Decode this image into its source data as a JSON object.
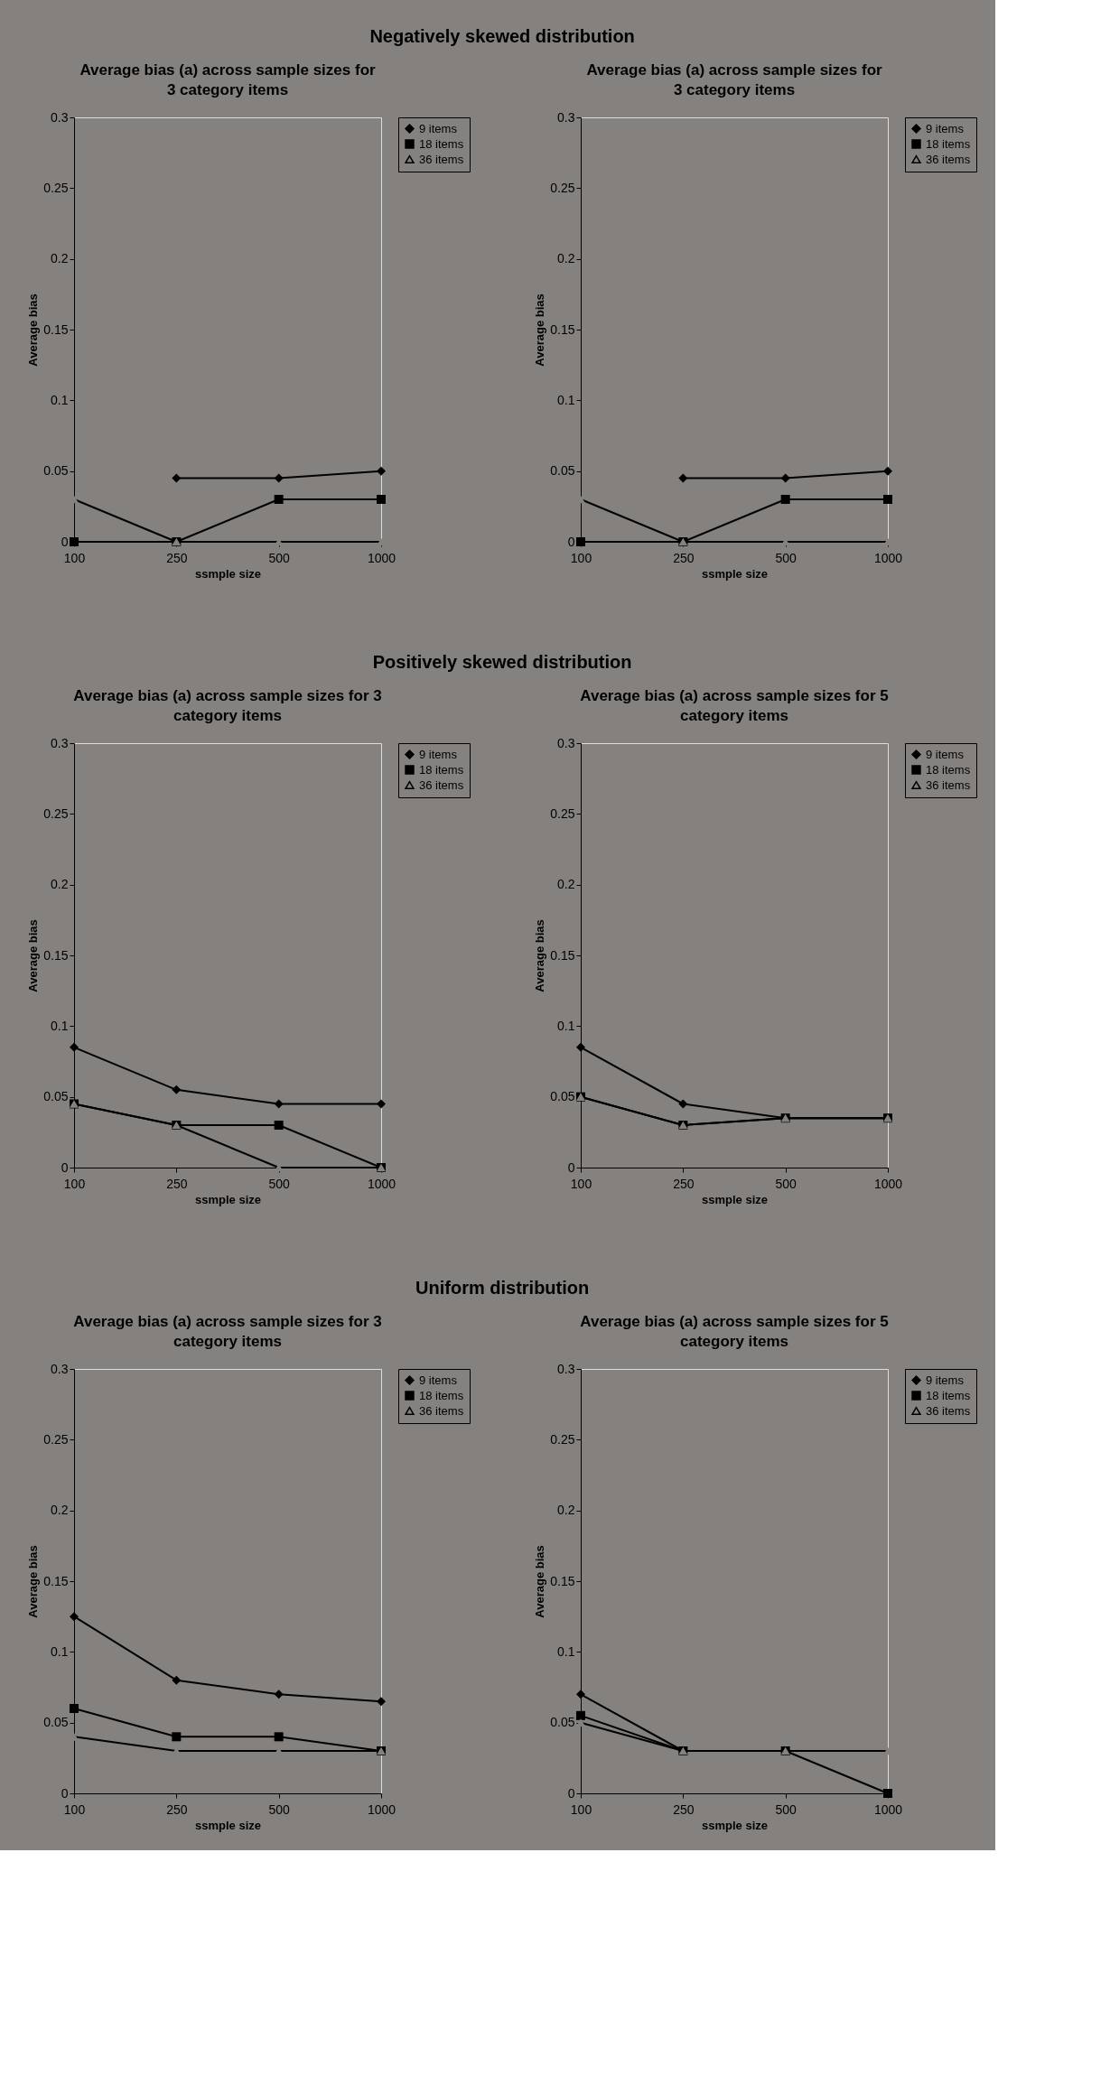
{
  "chart_data": [
    {
      "type": "line",
      "title": "Average bias (a) across sample sizes for\n3 category items",
      "xlabel": "ssmple size",
      "ylabel": "Average bias",
      "categories": [
        "100",
        "250",
        "500",
        "1000"
      ],
      "ylim": [
        0,
        0.3
      ],
      "yticks": [
        0,
        0.05,
        0.1,
        0.15,
        0.2,
        0.25,
        0.3
      ],
      "legend": "top right",
      "annotations": [
        "Negatively skewed distribution"
      ],
      "series": [
        {
          "name": "9 items",
          "color": "#000000",
          "marker": "diamond",
          "values": [
            null,
            0.045,
            0.045,
            0.05
          ]
        },
        {
          "name": "18 items",
          "color": "#000000",
          "marker": "square",
          "values": [
            0,
            0,
            0.03,
            0.03
          ]
        },
        {
          "name": "36 items",
          "color": "#000000",
          "marker": "triangle",
          "values": [
            0.03,
            0,
            0,
            0
          ]
        }
      ]
    },
    {
      "type": "line",
      "title": "Average bias (a) across sample sizes for\n3 category items",
      "xlabel": "ssmple size",
      "ylabel": "Average bias",
      "categories": [
        "100",
        "250",
        "500",
        "1000"
      ],
      "ylim": [
        0,
        0.3
      ],
      "yticks": [
        0,
        0.05,
        0.1,
        0.15,
        0.2,
        0.25,
        0.3
      ],
      "legend": "top right",
      "series": [
        {
          "name": "9 items",
          "color": "#000000",
          "marker": "diamond",
          "values": [
            null,
            0.045,
            0.045,
            0.05
          ]
        },
        {
          "name": "18 items",
          "color": "#000000",
          "marker": "square",
          "values": [
            0,
            0,
            0.03,
            0.03
          ]
        },
        {
          "name": "36 items",
          "color": "#000000",
          "marker": "triangle",
          "values": [
            0.03,
            0,
            0,
            0
          ]
        }
      ]
    },
    {
      "type": "line",
      "title": "Average bias (a) across sample sizes for 3\ncategory items",
      "xlabel": "ssmple size",
      "ylabel": "Average bias",
      "categories": [
        "100",
        "250",
        "500",
        "1000"
      ],
      "ylim": [
        0,
        0.3
      ],
      "yticks": [
        0,
        0.05,
        0.1,
        0.15,
        0.2,
        0.25,
        0.3
      ],
      "legend": "top right",
      "annotations": [
        "Positively skewed distribution"
      ],
      "series": [
        {
          "name": "9 items",
          "color": "#000000",
          "marker": "diamond",
          "values": [
            0.085,
            0.055,
            0.045,
            0.045
          ]
        },
        {
          "name": "18 items",
          "color": "#000000",
          "marker": "square",
          "values": [
            0.045,
            0.03,
            0.03,
            0
          ]
        },
        {
          "name": "36 items",
          "color": "#000000",
          "marker": "triangle",
          "values": [
            0.045,
            0.03,
            0,
            0
          ]
        }
      ]
    },
    {
      "type": "line",
      "title": "Average bias (a) across sample sizes for 5\ncategory items",
      "xlabel": "ssmple size",
      "ylabel": "Average bias",
      "categories": [
        "100",
        "250",
        "500",
        "1000"
      ],
      "ylim": [
        0,
        0.3
      ],
      "yticks": [
        0,
        0.05,
        0.1,
        0.15,
        0.2,
        0.25,
        0.3
      ],
      "legend": "top right",
      "series": [
        {
          "name": "9 items",
          "color": "#000000",
          "marker": "diamond",
          "values": [
            0.085,
            0.045,
            0.035,
            0.035
          ]
        },
        {
          "name": "18 items",
          "color": "#000000",
          "marker": "square",
          "values": [
            0.05,
            0.03,
            0.035,
            0.035
          ]
        },
        {
          "name": "36 items",
          "color": "#000000",
          "marker": "triangle",
          "values": [
            0.05,
            0.03,
            0.035,
            0.035
          ]
        }
      ]
    },
    {
      "type": "line",
      "title": "Average bias (a) across sample sizes for 3\ncategory items",
      "xlabel": "ssmple size",
      "ylabel": "Average bias",
      "categories": [
        "100",
        "250",
        "500",
        "1000"
      ],
      "ylim": [
        0,
        0.3
      ],
      "yticks": [
        0,
        0.05,
        0.1,
        0.15,
        0.2,
        0.25,
        0.3
      ],
      "legend": "top right",
      "annotations": [
        "Uniform distribution"
      ],
      "series": [
        {
          "name": "9 items",
          "color": "#000000",
          "marker": "diamond",
          "values": [
            0.125,
            0.08,
            0.07,
            0.065
          ]
        },
        {
          "name": "18 items",
          "color": "#000000",
          "marker": "square",
          "values": [
            0.06,
            0.04,
            0.04,
            0.03
          ]
        },
        {
          "name": "36 items",
          "color": "#000000",
          "marker": "triangle",
          "values": [
            0.04,
            0.03,
            0.03,
            0.03
          ]
        }
      ]
    },
    {
      "type": "line",
      "title": "Average bias (a) across sample sizes for 5\ncategory items",
      "xlabel": "ssmple size",
      "ylabel": "Average bias",
      "categories": [
        "100",
        "250",
        "500",
        "1000"
      ],
      "ylim": [
        0,
        0.3
      ],
      "yticks": [
        0,
        0.05,
        0.1,
        0.15,
        0.2,
        0.25,
        0.3
      ],
      "legend": "top right",
      "series": [
        {
          "name": "9 items",
          "color": "#000000",
          "marker": "diamond",
          "values": [
            0.07,
            0.03,
            0.03,
            null
          ]
        },
        {
          "name": "18 items",
          "color": "#000000",
          "marker": "square",
          "values": [
            0.055,
            0.03,
            0.03,
            0
          ]
        },
        {
          "name": "36 items",
          "color": "#000000",
          "marker": "triangle",
          "values": [
            0.05,
            0.03,
            0.03,
            0.03
          ]
        }
      ]
    }
  ]
}
